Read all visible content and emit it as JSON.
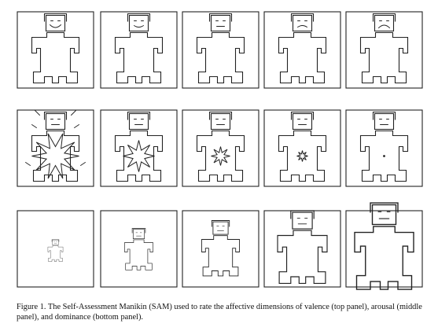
{
  "figure": {
    "caption": "Figure 1. The Self-Assessment Manikin (SAM) used to rate the affective dimensions of valence (top panel), arousal (middle panel), and dominance (bottom panel).",
    "rows": [
      {
        "dimension": "valence",
        "items": [
          "big-smile",
          "smile",
          "neutral",
          "frown",
          "big-frown"
        ]
      },
      {
        "dimension": "arousal",
        "items": [
          "explosion",
          "large-burst",
          "medium-burst",
          "small-burst",
          "dot"
        ]
      },
      {
        "dimension": "dominance",
        "items": [
          "tiny",
          "small",
          "medium",
          "large",
          "huge"
        ]
      }
    ]
  }
}
